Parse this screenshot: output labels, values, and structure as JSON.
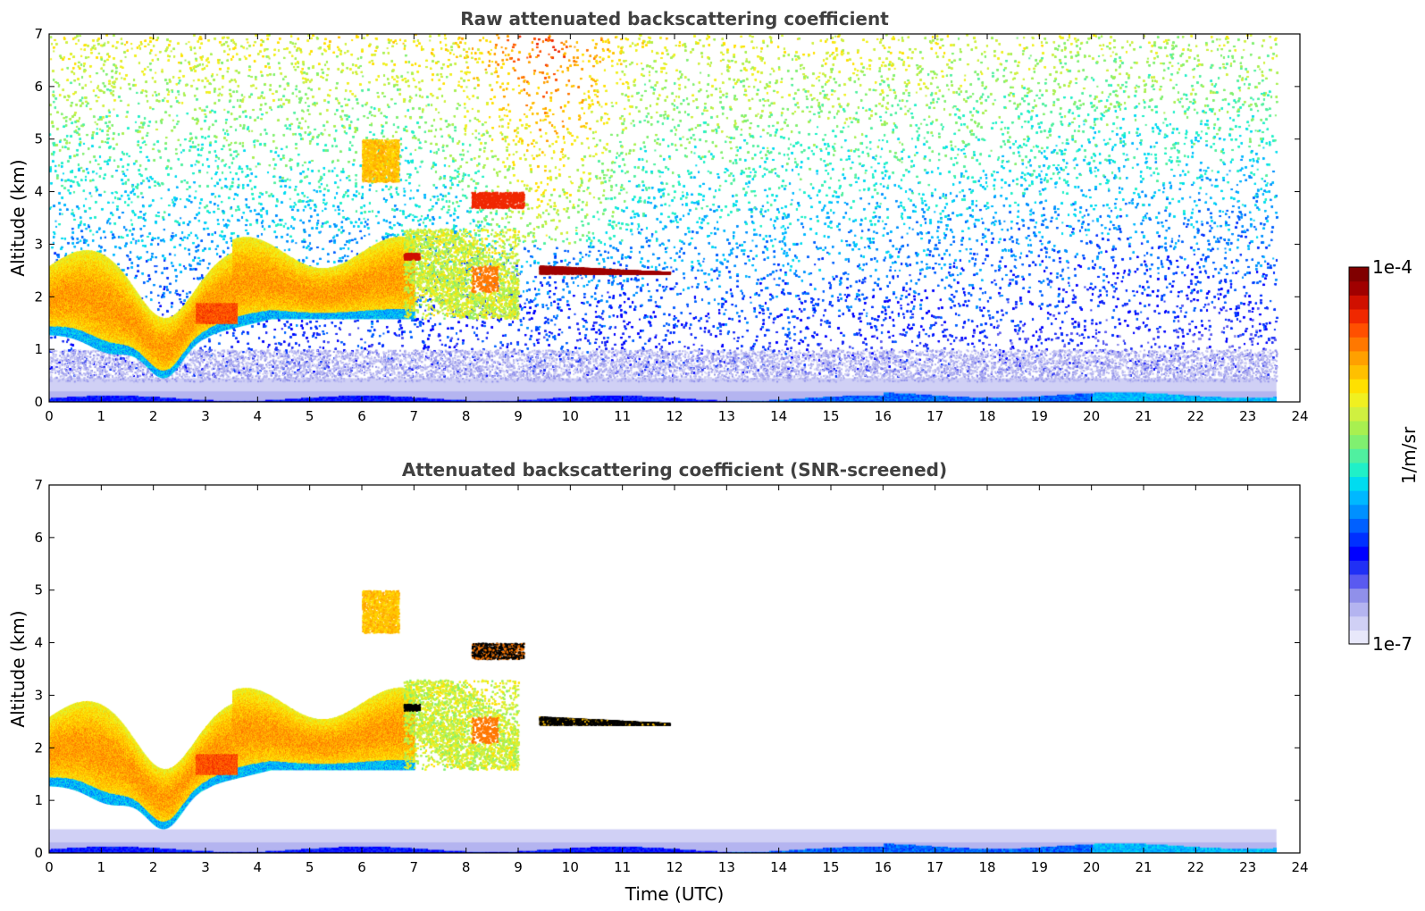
{
  "chart_data": [
    {
      "type": "heatmap",
      "title": "Raw attenuated backscattering coefficient",
      "xlabel": "",
      "ylabel": "Altitude (km)",
      "xlim": [
        0,
        24
      ],
      "ylim": [
        0,
        7
      ],
      "x_ticks": [
        "0",
        "1",
        "2",
        "3",
        "4",
        "5",
        "6",
        "7",
        "8",
        "9",
        "10",
        "11",
        "12",
        "13",
        "14",
        "15",
        "16",
        "17",
        "18",
        "19",
        "20",
        "21",
        "22",
        "23",
        "24"
      ],
      "y_ticks": [
        "0",
        "1",
        "2",
        "3",
        "4",
        "5",
        "6",
        "7"
      ],
      "data_end_time": 23.55,
      "features": [
        {
          "name": "boundary-layer aerosol",
          "time": [
            0,
            7.0
          ],
          "altitude": [
            0.5,
            3.2
          ],
          "intensity": "green-orange"
        },
        {
          "name": "elevated aerosol plume",
          "time": [
            6.8,
            9.0
          ],
          "altitude": [
            1.6,
            3.2
          ],
          "intensity": "green-orange"
        },
        {
          "name": "cloud",
          "time": [
            9.4,
            11.9
          ],
          "altitude": [
            2.4,
            2.6
          ],
          "intensity": "dark red"
        },
        {
          "name": "cloud",
          "time": [
            8.1,
            9.1
          ],
          "altitude": [
            3.6,
            4.1
          ],
          "intensity": "red"
        },
        {
          "name": "thin layer",
          "time": [
            6.0,
            6.7
          ],
          "altitude": [
            4.2,
            5.0
          ],
          "intensity": "yellow"
        },
        {
          "name": "surface layer",
          "time": [
            0,
            23.55
          ],
          "altitude": [
            0,
            0.2
          ],
          "intensity": "blue"
        },
        {
          "name": "noise",
          "time": [
            0,
            23.55
          ],
          "altitude": [
            0.5,
            7.0
          ],
          "intensity": "noisy"
        }
      ]
    },
    {
      "type": "heatmap",
      "title": "Attenuated backscattering coefficient (SNR-screened)",
      "xlabel": "Time (UTC)",
      "ylabel": "Altitude (km)",
      "xlim": [
        0,
        24
      ],
      "ylim": [
        0,
        7
      ],
      "x_ticks": [
        "0",
        "1",
        "2",
        "3",
        "4",
        "5",
        "6",
        "7",
        "8",
        "9",
        "10",
        "11",
        "12",
        "13",
        "14",
        "15",
        "16",
        "17",
        "18",
        "19",
        "20",
        "21",
        "22",
        "23",
        "24"
      ],
      "y_ticks": [
        "0",
        "1",
        "2",
        "3",
        "4",
        "5",
        "6",
        "7"
      ],
      "data_end_time": 23.55,
      "features": [
        {
          "name": "boundary-layer aerosol",
          "time": [
            0,
            7.0
          ],
          "altitude": [
            0.5,
            3.2
          ],
          "intensity": "green-orange"
        },
        {
          "name": "elevated aerosol plume",
          "time": [
            6.8,
            9.0
          ],
          "altitude": [
            1.6,
            3.2
          ],
          "intensity": "green-orange"
        },
        {
          "name": "cloud",
          "time": [
            9.4,
            11.9
          ],
          "altitude": [
            2.4,
            2.6
          ],
          "intensity": "black"
        },
        {
          "name": "cloud",
          "time": [
            8.1,
            9.1
          ],
          "altitude": [
            3.6,
            4.1
          ],
          "intensity": "black"
        },
        {
          "name": "thin layer",
          "time": [
            6.0,
            6.7
          ],
          "altitude": [
            4.2,
            5.0
          ],
          "intensity": "yellow"
        },
        {
          "name": "surface layer",
          "time": [
            0,
            23.55
          ],
          "altitude": [
            0,
            0.45
          ],
          "intensity": "blue"
        }
      ]
    }
  ],
  "colorbar": {
    "top_label": "1e-4",
    "bottom_label": "1e-7",
    "unit_label": "1/m/sr",
    "colors": [
      "#e8e8fa",
      "#d0d0f5",
      "#b4b4f0",
      "#9090ea",
      "#5a5af0",
      "#2030f5",
      "#0000ff",
      "#0030ff",
      "#0060ff",
      "#0090ff",
      "#00b8ff",
      "#00dcf0",
      "#20f0c8",
      "#50f0a0",
      "#80f070",
      "#a8f050",
      "#d0f040",
      "#f0f020",
      "#ffe000",
      "#ffc000",
      "#ffa000",
      "#ff7800",
      "#ff5000",
      "#f02800",
      "#d01000",
      "#a00000",
      "#800000"
    ]
  }
}
